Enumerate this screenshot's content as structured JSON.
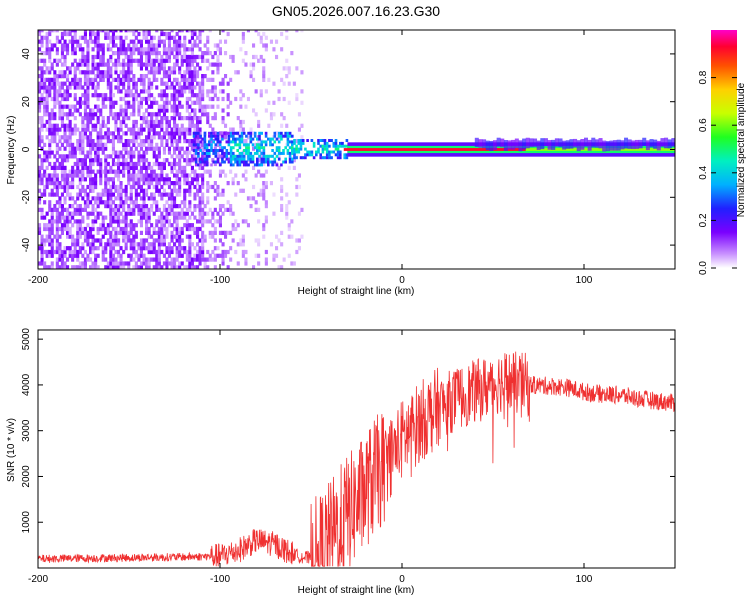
{
  "title": "GN05.2026.007.16.23.G30",
  "colors": {
    "snr_line": "#ef3030",
    "background_speckle": "#7a2cf0",
    "signal_band": "#ff2020"
  },
  "chart_data": [
    {
      "type": "heatmap",
      "title": "GN05.2026.007.16.23.G30",
      "xlabel": "Height of straight line (km)",
      "ylabel": "Frequency (Hz)",
      "xlim": [
        -200,
        150
      ],
      "ylim": [
        -50,
        50
      ],
      "xticks": [
        -200,
        -100,
        0,
        100
      ],
      "xtick_labels": [
        "-200",
        "-100",
        "0",
        "100"
      ],
      "yticks": [
        -40,
        -20,
        0,
        20,
        40
      ],
      "ytick_labels": [
        "-40",
        "-20",
        "0",
        "20",
        "40"
      ],
      "colorbar": {
        "label": "Normalized spectral amplitude",
        "range": [
          0,
          1
        ],
        "ticks": [
          0.0,
          0.2,
          0.4,
          0.6,
          0.8
        ],
        "tick_labels": [
          "0.0",
          "0.2",
          "0.4",
          "0.6",
          "0.8"
        ]
      },
      "description_values": {
        "signal_frequency_hz": 0,
        "noise_region_km": [
          -200,
          -60
        ],
        "strong_signal_region_km": [
          -30,
          150
        ]
      }
    },
    {
      "type": "line",
      "xlabel": "Height of straight line (km)",
      "ylabel": "SNR (10 * v/v)",
      "xlim": [
        -200,
        150
      ],
      "ylim": [
        0,
        5200
      ],
      "xticks": [
        -200,
        -100,
        0,
        100
      ],
      "xtick_labels": [
        "-200",
        "-100",
        "0",
        "100"
      ],
      "yticks": [
        1000,
        2000,
        3000,
        4000,
        5000
      ],
      "ytick_labels": [
        "1000",
        "2000",
        "3000",
        "4000",
        "5000"
      ],
      "series": [
        {
          "name": "SNR",
          "x": [
            -200,
            -180,
            -160,
            -140,
            -120,
            -100,
            -90,
            -80,
            -70,
            -60,
            -50,
            -45,
            -40,
            -35,
            -30,
            -25,
            -20,
            -15,
            -10,
            -5,
            0,
            10,
            20,
            30,
            40,
            50,
            55,
            60,
            70,
            80,
            90,
            100,
            110,
            120,
            130,
            140,
            150
          ],
          "y": [
            200,
            210,
            220,
            230,
            240,
            260,
            380,
            600,
            520,
            300,
            200,
            350,
            600,
            900,
            1200,
            1400,
            1700,
            2000,
            2200,
            2500,
            2800,
            3200,
            3500,
            3700,
            3850,
            4000,
            4100,
            4050,
            4000,
            3980,
            3950,
            3850,
            3800,
            3780,
            3700,
            3650,
            3600
          ]
        }
      ]
    }
  ]
}
